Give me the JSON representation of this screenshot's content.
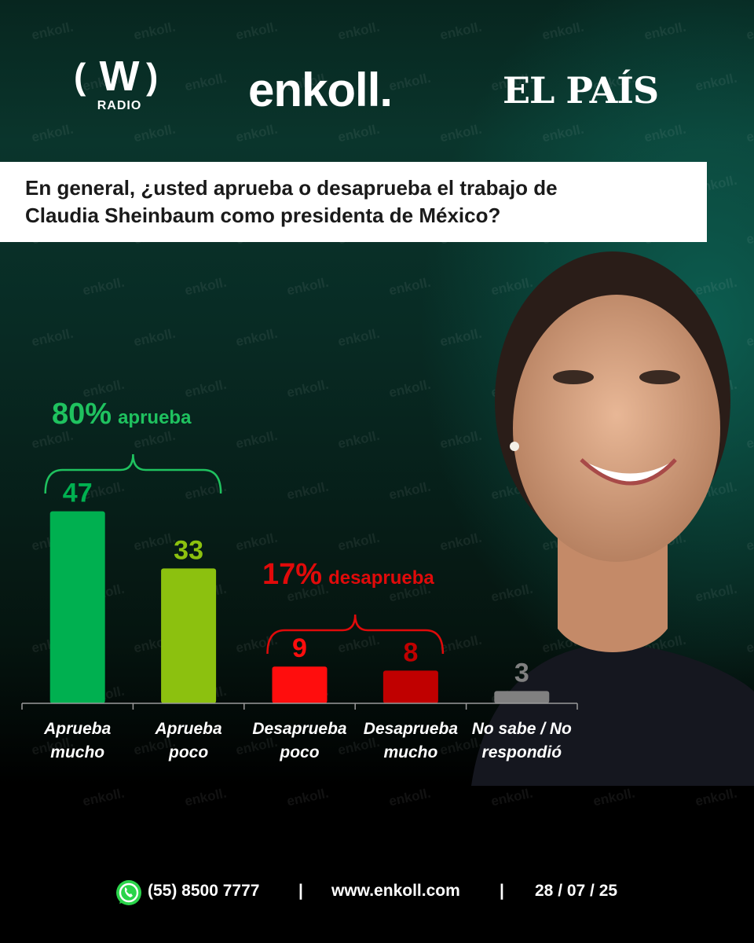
{
  "brand": {
    "logo_w_letter": "W",
    "logo_w_radio": "RADIO",
    "logo_enkoll": "enkoll.",
    "logo_pais": "EL PAÍS",
    "watermark": "enkoll."
  },
  "question": "En general, ¿usted aprueba o desaprueba el trabajo de Claudia Sheinbaum como presidenta de México?",
  "summary": {
    "approve_pct": "80%",
    "approve_label": "aprueba",
    "disapprove_pct": "17%",
    "disapprove_label": "desaprueba"
  },
  "colors": {
    "approve_much": "#00b050",
    "approve_little": "#8cc10f",
    "disapprove_little": "#ff0d0d",
    "disapprove_much": "#c00000",
    "no_answer": "#808080",
    "approve_text": "#1fc25f",
    "disapprove_text": "#e00a0a"
  },
  "chart_data": {
    "type": "bar",
    "categories": [
      [
        "Aprueba",
        "mucho"
      ],
      [
        "Aprueba",
        "poco"
      ],
      [
        "Desaprueba",
        "poco"
      ],
      [
        "Desaprueba",
        "mucho"
      ],
      [
        "No sabe / No",
        "respondió"
      ]
    ],
    "values": [
      47,
      33,
      9,
      8,
      3
    ],
    "bar_colors": [
      "#00b050",
      "#8cc10f",
      "#ff0d0d",
      "#c00000",
      "#808080"
    ],
    "label_colors": [
      "#00b050",
      "#8cc10f",
      "#ff0d0d",
      "#c00000",
      "#808080"
    ],
    "ylim": [
      0,
      50
    ],
    "grid": false,
    "groups": [
      {
        "label": "80% aprueba",
        "value": 80,
        "covers": [
          0,
          1
        ]
      },
      {
        "label": "17% desaprueba",
        "value": 17,
        "covers": [
          2,
          3
        ]
      }
    ]
  },
  "footer": {
    "phone_icon": "whatsapp-icon",
    "phone": "(55) 8500 7777",
    "separator": "|",
    "website": "www.enkoll.com",
    "date": "28 / 07 / 25"
  }
}
